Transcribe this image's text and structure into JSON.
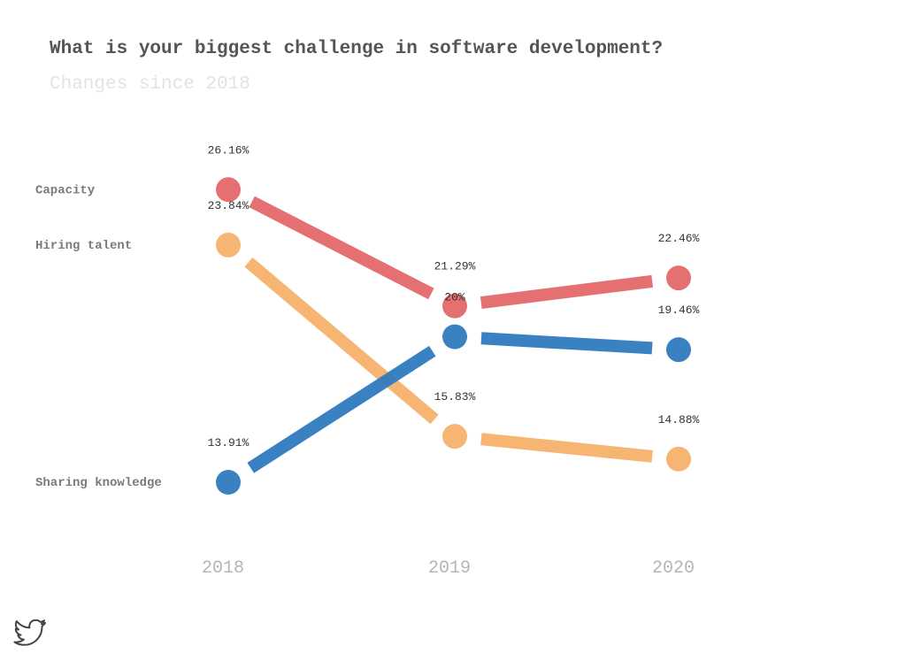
{
  "title": "What is your biggest challenge in software development?",
  "subtitle": "Changes since 2018",
  "chart_data": {
    "type": "line",
    "title": "What is your biggest challenge in software development?",
    "subtitle": "Changes since 2018",
    "x": [
      "2018",
      "2019",
      "2020"
    ],
    "series": [
      {
        "name": "Capacity",
        "values": [
          26.16,
          21.29,
          22.46
        ],
        "labels": [
          "26.16%",
          "21.29%",
          "22.46%"
        ],
        "color": "#e15759"
      },
      {
        "name": "Hiring talent",
        "values": [
          23.84,
          15.83,
          14.88
        ],
        "labels": [
          "23.84%",
          "15.83%",
          "14.88%"
        ],
        "color": "#f5a85a"
      },
      {
        "name": "Sharing knowledge",
        "values": [
          13.91,
          20,
          19.46
        ],
        "labels": [
          "13.91%",
          "20%",
          "19.46%"
        ],
        "color": "#2f7abf"
      }
    ],
    "grid": false,
    "legend": "left series labels"
  },
  "icons": {
    "footer": "twitter-bird-icon"
  }
}
